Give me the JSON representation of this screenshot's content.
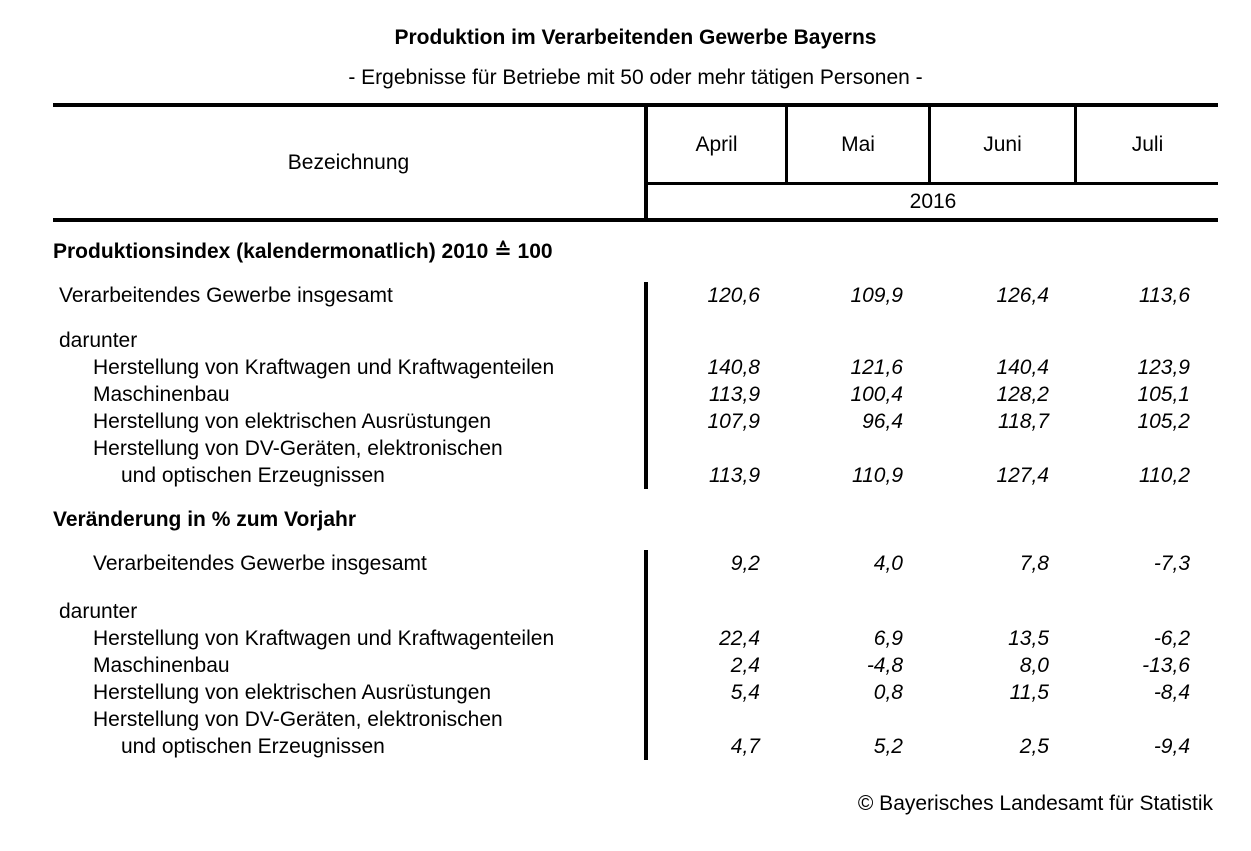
{
  "title": "Produktion im Verarbeitenden Gewerbe Bayerns",
  "subtitle": "- Ergebnisse für Betriebe mit 50 oder mehr tätigen Personen -",
  "table": {
    "label_header": "Bezeichnung",
    "months": [
      "April",
      "Mai",
      "Juni",
      "Juli"
    ],
    "year": "2016"
  },
  "sections": [
    {
      "title": "Produktionsindex (kalendermonatlich) 2010 ≙ 100",
      "rows": [
        {
          "label": "Verarbeitendes Gewerbe insgesamt",
          "values": [
            "120,6",
            "109,9",
            "126,4",
            "113,6"
          ]
        },
        {
          "label": "darunter"
        },
        {
          "label": "Herstellung von Kraftwagen und Kraftwagenteilen",
          "values": [
            "140,8",
            "121,6",
            "140,4",
            "123,9"
          ]
        },
        {
          "label": "Maschinenbau",
          "values": [
            "113,9",
            "100,4",
            "128,2",
            "105,1"
          ]
        },
        {
          "label": "Herstellung von elektrischen Ausrüstungen",
          "values": [
            "107,9",
            "96,4",
            "118,7",
            "105,2"
          ]
        },
        {
          "label": "Herstellung von DV-Geräten, elektronischen"
        },
        {
          "label": "und optischen Erzeugnissen",
          "values": [
            "113,9",
            "110,9",
            "127,4",
            "110,2"
          ]
        }
      ]
    },
    {
      "title": "Veränderung in % zum Vorjahr",
      "rows": [
        {
          "label": "Verarbeitendes Gewerbe insgesamt",
          "values": [
            "9,2",
            "4,0",
            "7,8",
            "-7,3"
          ]
        },
        {
          "label": "darunter"
        },
        {
          "label": "Herstellung von Kraftwagen und Kraftwagenteilen",
          "values": [
            "22,4",
            "6,9",
            "13,5",
            "-6,2"
          ]
        },
        {
          "label": "Maschinenbau",
          "values": [
            "2,4",
            "-4,8",
            "8,0",
            "-13,6"
          ]
        },
        {
          "label": "Herstellung von elektrischen Ausrüstungen",
          "values": [
            "5,4",
            "0,8",
            "11,5",
            "-8,4"
          ]
        },
        {
          "label": "Herstellung von DV-Geräten, elektronischen"
        },
        {
          "label": "und optischen Erzeugnissen",
          "values": [
            "4,7",
            "5,2",
            "2,5",
            "-9,4"
          ]
        }
      ]
    }
  ],
  "footer": "© Bayerisches Landesamt für Statistik",
  "chart_data": {
    "type": "table",
    "title": "Produktion im Verarbeitenden Gewerbe Bayerns",
    "subtitle": "- Ergebnisse für Betriebe mit 50 oder mehr tätigen Personen -",
    "columns": [
      "Bezeichnung",
      "April 2016",
      "Mai 2016",
      "Juni 2016",
      "Juli 2016"
    ],
    "sections": [
      {
        "name": "Produktionsindex (kalendermonatlich) 2010 ≙ 100",
        "rows": [
          [
            "Verarbeitendes Gewerbe insgesamt",
            120.6,
            109.9,
            126.4,
            113.6
          ],
          [
            "Herstellung von Kraftwagen und Kraftwagenteilen",
            140.8,
            121.6,
            140.4,
            123.9
          ],
          [
            "Maschinenbau",
            113.9,
            100.4,
            128.2,
            105.1
          ],
          [
            "Herstellung von elektrischen Ausrüstungen",
            107.9,
            96.4,
            118.7,
            105.2
          ],
          [
            "Herstellung von DV-Geräten, elektronischen und optischen Erzeugnissen",
            113.9,
            110.9,
            127.4,
            110.2
          ]
        ]
      },
      {
        "name": "Veränderung in % zum Vorjahr",
        "rows": [
          [
            "Verarbeitendes Gewerbe insgesamt",
            9.2,
            4.0,
            7.8,
            -7.3
          ],
          [
            "Herstellung von Kraftwagen und Kraftwagenteilen",
            22.4,
            6.9,
            13.5,
            -6.2
          ],
          [
            "Maschinenbau",
            2.4,
            -4.8,
            8.0,
            -13.6
          ],
          [
            "Herstellung von elektrischen Ausrüstungen",
            5.4,
            0.8,
            11.5,
            -8.4
          ],
          [
            "Herstellung von DV-Geräten, elektronischen und optischen Erzeugnissen",
            4.7,
            5.2,
            2.5,
            -9.4
          ]
        ]
      }
    ]
  }
}
